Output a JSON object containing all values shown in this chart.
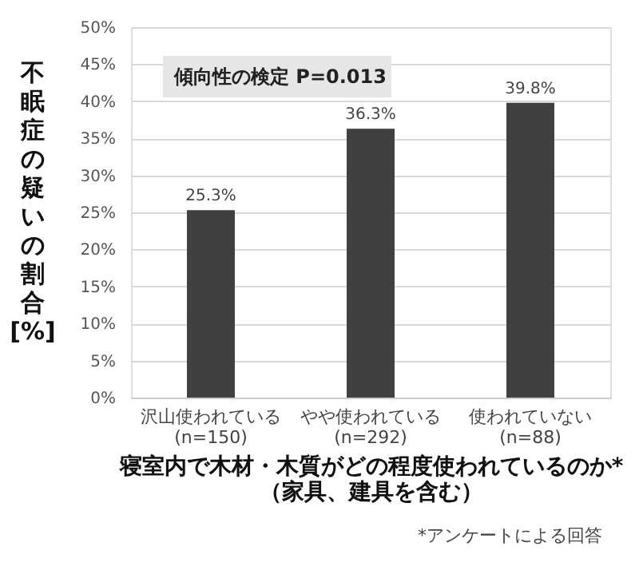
{
  "chart_data": {
    "type": "bar",
    "categories": [
      "沢山使われている\n(n=150)",
      "やや使われている\n(n=292)",
      "使われていない\n(n=88)"
    ],
    "values": [
      25.3,
      36.3,
      39.8
    ],
    "color": "#404040",
    "value_labels": [
      "25.3%",
      "36.3%",
      "39.8%"
    ],
    "ylabel": "不眠症の疑いの割合 [%]",
    "xlabel": "寝室内で木材・木質がどの程度使われているのか*\n（家具、建具を含む）",
    "annotations": [
      "傾向性の検定 P=0.013",
      "*アンケートによる回答"
    ],
    "ylim": [
      0,
      50
    ],
    "yticks": [
      {
        "value": 0,
        "label": "0%"
      },
      {
        "value": 5,
        "label": "5%"
      },
      {
        "value": 10,
        "label": "10%"
      },
      {
        "value": 15,
        "label": "15%"
      },
      {
        "value": 20,
        "label": "20%"
      },
      {
        "value": 25,
        "label": "25%"
      },
      {
        "value": 30,
        "label": "30%"
      },
      {
        "value": 35,
        "label": "35%"
      },
      {
        "value": 40,
        "label": "40%"
      },
      {
        "value": 45,
        "label": "45%"
      },
      {
        "value": 50,
        "label": "50%"
      }
    ],
    "grid": "y"
  }
}
